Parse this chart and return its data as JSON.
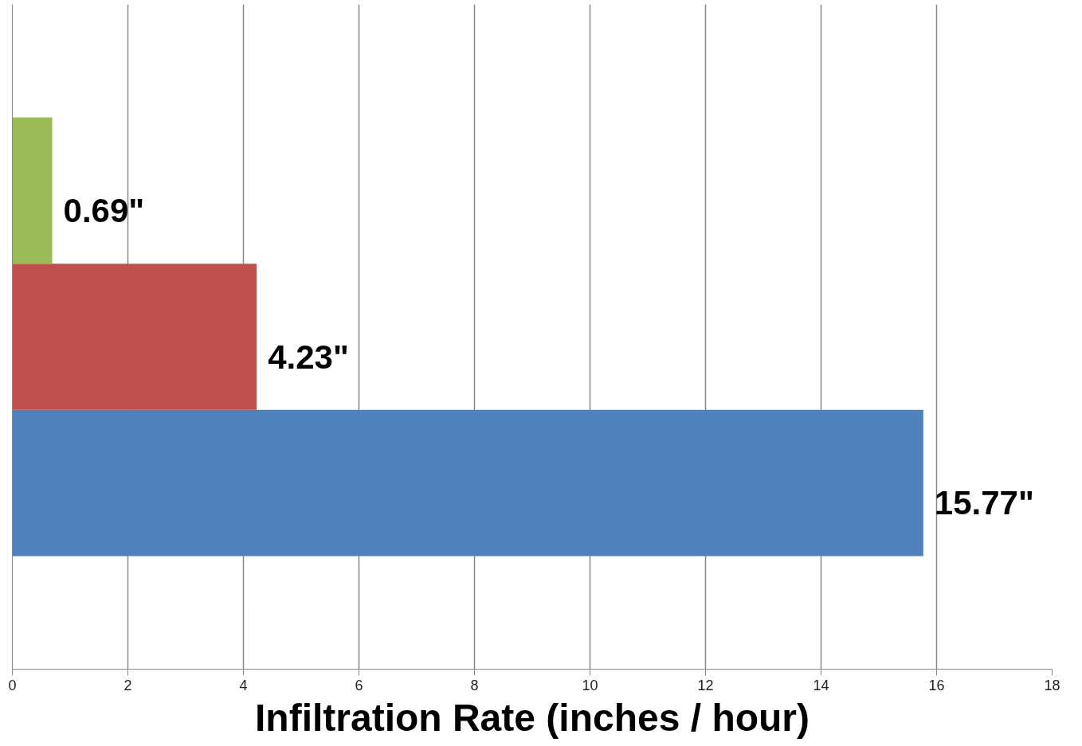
{
  "chart_data": {
    "type": "bar",
    "orientation": "horizontal",
    "xlabel": "Infiltration Rate (inches / hour)",
    "categories": [
      null
    ],
    "series": [
      {
        "color": "#4f81bd",
        "values": [
          15.77
        ],
        "value_labels": [
          "15.77\""
        ]
      },
      {
        "color": "#c0504d",
        "values": [
          4.23
        ],
        "value_labels": [
          "4.23\""
        ]
      },
      {
        "color": "#9bbb59",
        "values": [
          0.69
        ],
        "value_labels": [
          "0.69\""
        ]
      }
    ],
    "xlim": [
      0,
      18
    ],
    "xticks": [
      0,
      2,
      4,
      6,
      8,
      10,
      12,
      14,
      16,
      18
    ],
    "grid": "x",
    "tick_labels": "x"
  }
}
